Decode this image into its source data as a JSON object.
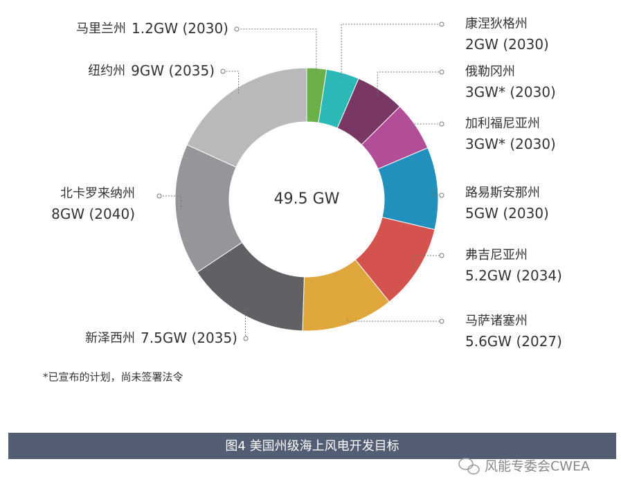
{
  "chart_data": {
    "type": "donut",
    "center_label": "49.5 GW",
    "categories": [
      "马里兰州",
      "康涅狄格州",
      "俄勒冈州",
      "加利福尼亚州",
      "路易斯安那州",
      "弗吉尼亚州",
      "马萨诸塞州",
      "新泽西州",
      "北卡罗来纳州",
      "纽约州"
    ],
    "values": [
      1.2,
      2,
      3,
      3,
      5,
      5.2,
      5.6,
      7.5,
      8,
      9
    ],
    "value_labels": [
      "1.2GW (2030)",
      "2GW (2030)",
      "3GW* (2030)",
      "3GW* (2030)",
      "5GW (2030)",
      "5.2GW (2034)",
      "5.6GW (2027)",
      "7.5GW (2035)",
      "8GW (2040)",
      "9GW (2035)"
    ],
    "colors": [
      "#6cb04a",
      "#2bb8b6",
      "#793763",
      "#b24e98",
      "#2190bd",
      "#d5534f",
      "#dea63b",
      "#616165",
      "#96969a",
      "#b9b9bc"
    ],
    "footnote": "*已宣布的计划，尚未签署法令"
  },
  "caption": "图4 美国州级海上风电开发目标",
  "watermark": "风能专委会CWEA"
}
